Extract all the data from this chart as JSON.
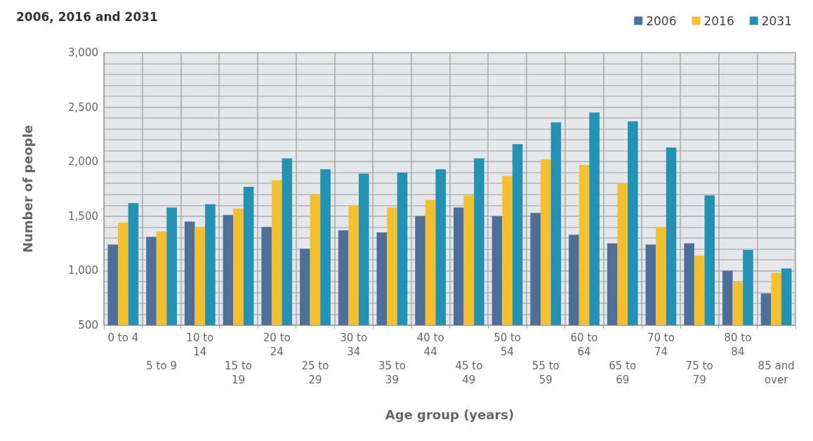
{
  "chart_data": {
    "type": "bar",
    "title": "2006, 2016 and 2031",
    "xlabel": "Age group (years)",
    "ylabel": "Number of people",
    "categories": [
      "0 to 4",
      "5 to 9",
      "10 to 14",
      "15 to 19",
      "20 to 24",
      "25 to 29",
      "30 to 34",
      "35 to 39",
      "40 to 44",
      "45 to 49",
      "50 to 54",
      "55 to 59",
      "60 to 64",
      "65 to 69",
      "70 to 74",
      "75 to 79",
      "80 to 84",
      "85 and over"
    ],
    "series": [
      {
        "name": "2006",
        "color": "#4e6f9a",
        "values": [
          1240,
          1310,
          1450,
          1510,
          1400,
          1200,
          1370,
          1350,
          1500,
          1580,
          1500,
          1530,
          1330,
          1250,
          1240,
          1250,
          1000,
          790
        ]
      },
      {
        "name": "2016",
        "color": "#f3c130",
        "values": [
          1440,
          1360,
          1400,
          1570,
          1830,
          1700,
          1600,
          1580,
          1650,
          1690,
          1870,
          2020,
          1970,
          1800,
          1400,
          1140,
          900,
          980
        ]
      },
      {
        "name": "2031",
        "color": "#2493b3",
        "values": [
          1620,
          1580,
          1610,
          1770,
          2030,
          1930,
          1890,
          1900,
          1930,
          2030,
          2160,
          2360,
          2450,
          2370,
          2130,
          1690,
          1190,
          1020
        ]
      }
    ],
    "ylim": [
      500,
      3000
    ],
    "yticks": [
      500,
      {
        "value": 1000,
        "label": "1,000"
      },
      {
        "value": 1500,
        "label": "1,500"
      },
      {
        "value": 2000,
        "label": "2,000"
      },
      {
        "value": 2500,
        "label": "2,500"
      },
      {
        "value": 3000,
        "label": "3,000"
      }
    ],
    "grid": true,
    "legend": "top right"
  }
}
